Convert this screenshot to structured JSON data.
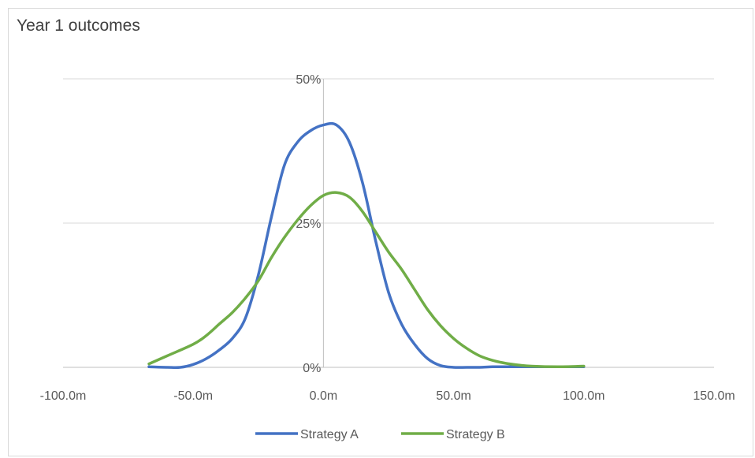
{
  "chart_data": {
    "type": "line",
    "title": "Year 1 outcomes",
    "xlabel": "",
    "ylabel": "",
    "xlim": [
      -100,
      150
    ],
    "ylim": [
      0,
      0.5
    ],
    "x_ticks": [
      -100,
      -50,
      0,
      50,
      100,
      150
    ],
    "x_tick_labels": [
      "-100.0m",
      "-50.0m",
      "0.0m",
      "50.0m",
      "100.0m",
      "150.0m"
    ],
    "y_ticks": [
      0,
      0.25,
      0.5
    ],
    "y_tick_labels": [
      "0%",
      "25%",
      "50%"
    ],
    "grid": "horizontal",
    "legend": "bottom",
    "series": [
      {
        "name": "Strategy A",
        "color": "#4472c4",
        "x": [
          -67,
          -60,
          -55,
          -50,
          -45,
          -40,
          -35,
          -30,
          -25,
          -20,
          -15,
          -10,
          -5,
          0,
          5,
          10,
          15,
          20,
          25,
          30,
          35,
          40,
          45,
          50,
          55,
          60,
          65,
          70,
          80,
          90,
          100
        ],
        "y": [
          0.001,
          0.0,
          0.0,
          0.005,
          0.015,
          0.03,
          0.05,
          0.085,
          0.16,
          0.26,
          0.35,
          0.39,
          0.41,
          0.42,
          0.42,
          0.39,
          0.32,
          0.22,
          0.13,
          0.075,
          0.04,
          0.015,
          0.003,
          0.0,
          0.0,
          0.0,
          0.001,
          0.001,
          0.001,
          0.001,
          0.001
        ]
      },
      {
        "name": "Strategy B",
        "color": "#70ad47",
        "x": [
          -67,
          -60,
          -50,
          -45,
          -40,
          -35,
          -30,
          -25,
          -20,
          -15,
          -10,
          -5,
          0,
          5,
          10,
          15,
          20,
          25,
          30,
          35,
          40,
          45,
          50,
          55,
          60,
          65,
          70,
          75,
          80,
          90,
          100
        ],
        "y": [
          0.006,
          0.02,
          0.04,
          0.055,
          0.075,
          0.095,
          0.12,
          0.15,
          0.19,
          0.225,
          0.255,
          0.28,
          0.298,
          0.303,
          0.295,
          0.27,
          0.235,
          0.2,
          0.17,
          0.135,
          0.1,
          0.072,
          0.05,
          0.033,
          0.02,
          0.012,
          0.007,
          0.004,
          0.002,
          0.001,
          0.002
        ]
      }
    ]
  }
}
